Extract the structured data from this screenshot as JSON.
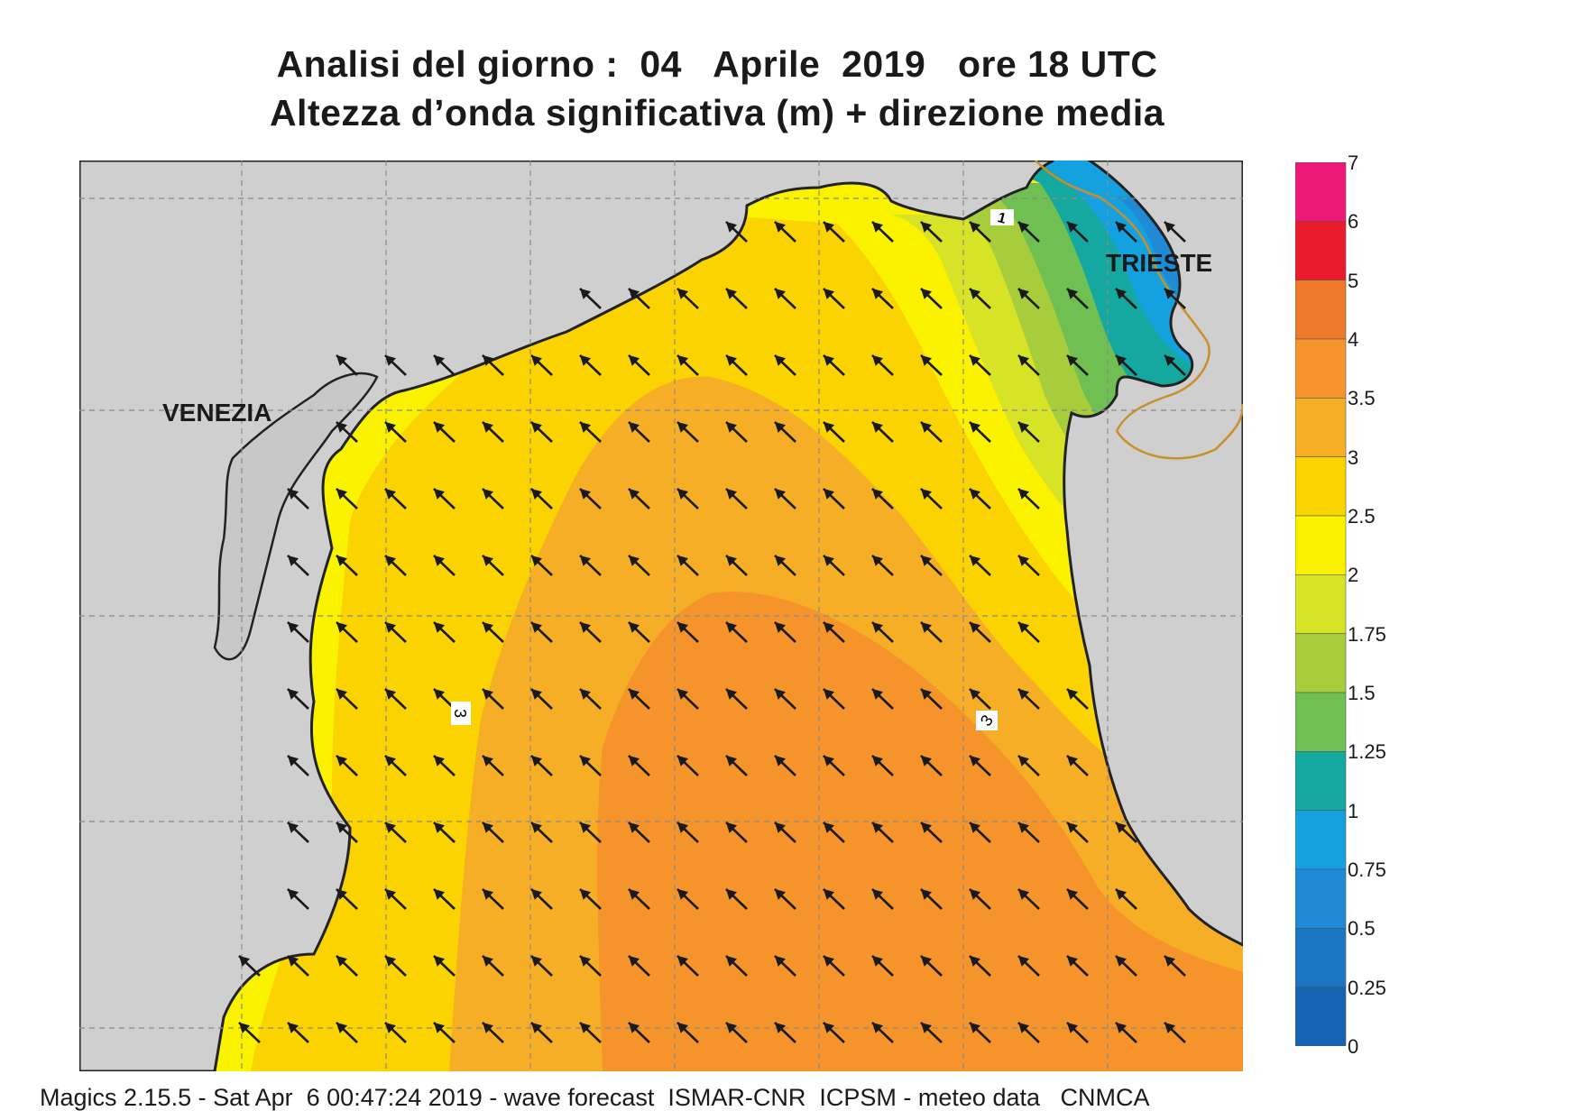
{
  "title": {
    "line1": "Analisi del giorno :  04   Aprile  2019   ore 18 UTC",
    "line2": "Altezza d’onda significativa (m) + direzione media"
  },
  "map": {
    "cities": [
      {
        "id": "venezia",
        "name": "VENEZIA"
      },
      {
        "id": "trieste",
        "name": "TRIESTE"
      }
    ],
    "contour_labels": [
      "1",
      "3",
      "3"
    ],
    "land_color": "#cfcfcf",
    "coast_color": "#222222",
    "border_color": "#c8902a",
    "wave_direction": "north-west"
  },
  "colorbar": {
    "levels": [
      "7",
      "6",
      "5",
      "4",
      "3.5",
      "3",
      "2.5",
      "2",
      "1.75",
      "1.5",
      "1.25",
      "1",
      "0.75",
      "0.5",
      "0.25",
      "0"
    ],
    "colors": [
      "#ee1a7a",
      "#e81c2c",
      "#ef7a2a",
      "#f4942a",
      "#f6ae26",
      "#fad300",
      "#fbf200",
      "#d7e326",
      "#a7cd3c",
      "#6fbf52",
      "#15a8a0",
      "#14a1e0",
      "#1f8bd6",
      "#1a75c2",
      "#1563b2"
    ]
  },
  "footer": "Magics 2.15.5 - Sat Apr  6 00:47:24 2019 - wave forecast  ISMAR-CNR  ICPSM - meteo data   CNMCA"
}
